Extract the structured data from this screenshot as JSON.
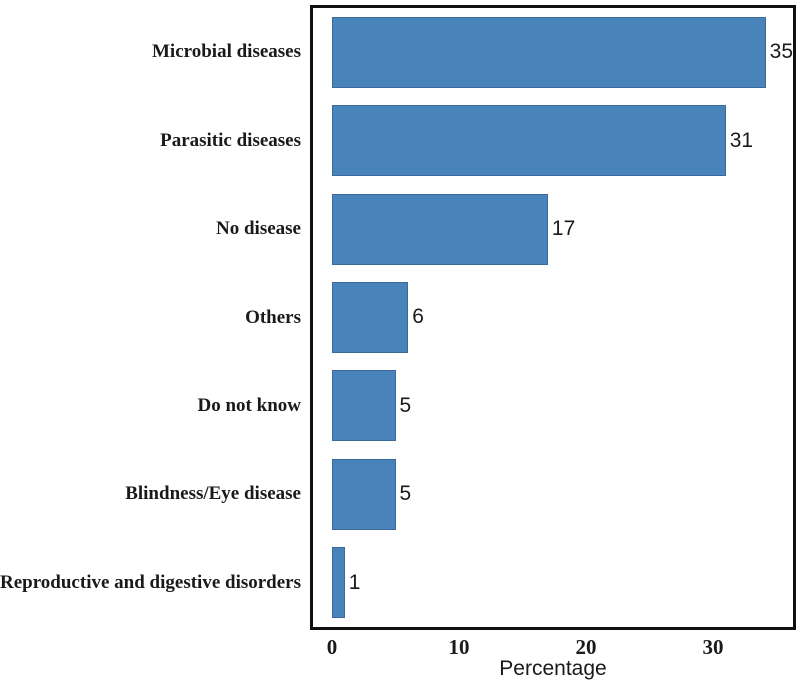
{
  "chart_data": {
    "type": "bar",
    "orientation": "horizontal",
    "title": "",
    "categories": [
      "Microbial diseases",
      "Parasitic diseases",
      "No disease",
      "Others",
      "Do not know",
      "Blindness/Eye disease",
      "Reproductive and digestive disorders"
    ],
    "values": [
      35,
      31,
      17,
      6,
      5,
      5,
      1
    ],
    "value_labels": [
      "35",
      "31",
      "17",
      "6",
      "5",
      "5",
      "1"
    ],
    "xlabel": "Percentage",
    "x_ticks": [
      0,
      10,
      20,
      30
    ],
    "xlim": [
      0,
      36.5
    ],
    "grid": false,
    "legend": null,
    "value_labels_shown": true,
    "bar_color": "#4884ba",
    "bar_edge_color": "#3a6a9a",
    "axis_box_color": "#111111",
    "text_color": "#1a1a1a",
    "background_color": "#ffffff"
  }
}
